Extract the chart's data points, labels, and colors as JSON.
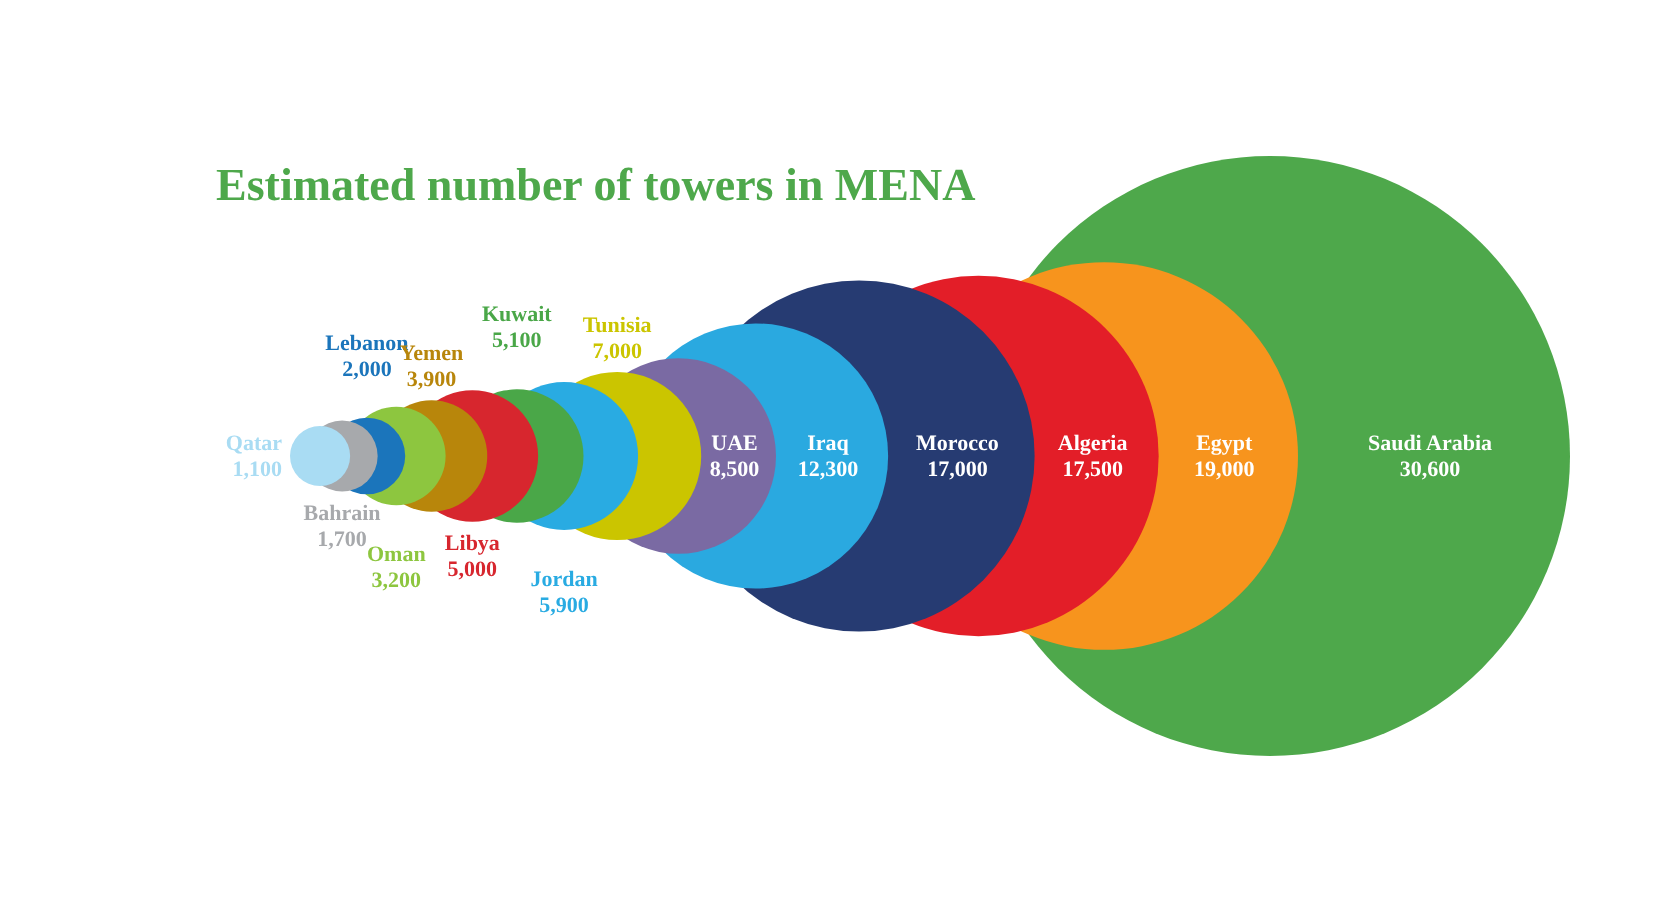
{
  "chart_data": {
    "type": "other",
    "title": "Estimated number of towers in MENA",
    "categories": [
      "Qatar",
      "Bahrain",
      "Lebanon",
      "Oman",
      "Yemen",
      "Libya",
      "Kuwait",
      "Jordan",
      "Tunisia",
      "UAE",
      "Iraq",
      "Morocco",
      "Algeria",
      "Egypt",
      "Saudi Arabia"
    ],
    "values": [
      1100,
      1700,
      2000,
      3200,
      3900,
      5000,
      5100,
      5900,
      7000,
      8500,
      12300,
      17000,
      17500,
      19000,
      30600
    ],
    "colors": [
      "#a9dcf3",
      "#a7a9ac",
      "#1b75bb",
      "#8dc63f",
      "#b8860b",
      "#d7262e",
      "#4aa748",
      "#29abe2",
      "#cbc500",
      "#7a6aa3",
      "#2aa9e0",
      "#263b72",
      "#e31e28",
      "#f7941d",
      "#4ea84b"
    ],
    "value_labels": [
      "1,100",
      "1,700",
      "2,000",
      "3,200",
      "3,900",
      "5,000",
      "5,100",
      "5,900",
      "7,000",
      "8,500",
      "12,300",
      "17,000",
      "17,500",
      "19,000",
      "30,600"
    ]
  }
}
